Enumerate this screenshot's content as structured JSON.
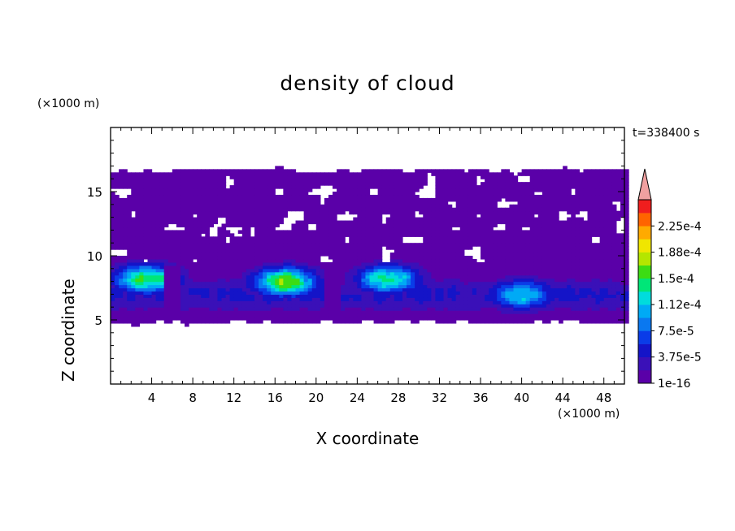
{
  "chart_data": {
    "type": "heatmap",
    "title": "density of cloud",
    "xlabel": "X coordinate",
    "ylabel": "Z coordinate",
    "x_unit": "(×1000 m)",
    "y_unit": "(×1000 m)",
    "time_label": "t=338400 s",
    "xlim": [
      0,
      50
    ],
    "ylim": [
      0,
      20
    ],
    "x_ticks": [
      4,
      8,
      12,
      16,
      20,
      24,
      28,
      32,
      36,
      40,
      44,
      48
    ],
    "y_ticks": [
      5,
      10,
      15
    ],
    "colorbar": {
      "labels": [
        "1e-16",
        "3.75e-5",
        "7.5e-5",
        "1.12e-4",
        "1.5e-4",
        "1.88e-4",
        "2.25e-4"
      ],
      "levels": [
        1e-16,
        1.875e-05,
        3.75e-05,
        5.625e-05,
        7.5e-05,
        9.375e-05,
        0.0001125,
        0.00013125,
        0.00015,
        0.00016875,
        0.0001875,
        0.00020625,
        0.000225,
        0.00024375
      ],
      "colors": [
        "#5a00a8",
        "#3a10b8",
        "#1414c8",
        "#0a3ce8",
        "#0a78f0",
        "#00aaf5",
        "#00dcdc",
        "#00e678",
        "#3cdc14",
        "#b4e600",
        "#f0e600",
        "#ffaa00",
        "#ff6400",
        "#f01e1e"
      ],
      "extend_color": "#f0a0a0",
      "extend": "max"
    },
    "regions_summary": {
      "cloud_top_km": 16.7,
      "cloud_base_km": 4.8,
      "dense_layer_km": [
        5.5,
        9.0
      ],
      "max_density_centers": [
        {
          "x": 3.5,
          "z": 8.2,
          "value": 0.00016
        },
        {
          "x": 17.0,
          "z": 8.0,
          "value": 0.00017
        },
        {
          "x": 27.0,
          "z": 8.2,
          "value": 0.00014
        },
        {
          "x": 40.0,
          "z": 7.0,
          "value": 0.00012
        }
      ],
      "gaps_x_km": [
        6.0,
        21.5
      ]
    }
  }
}
